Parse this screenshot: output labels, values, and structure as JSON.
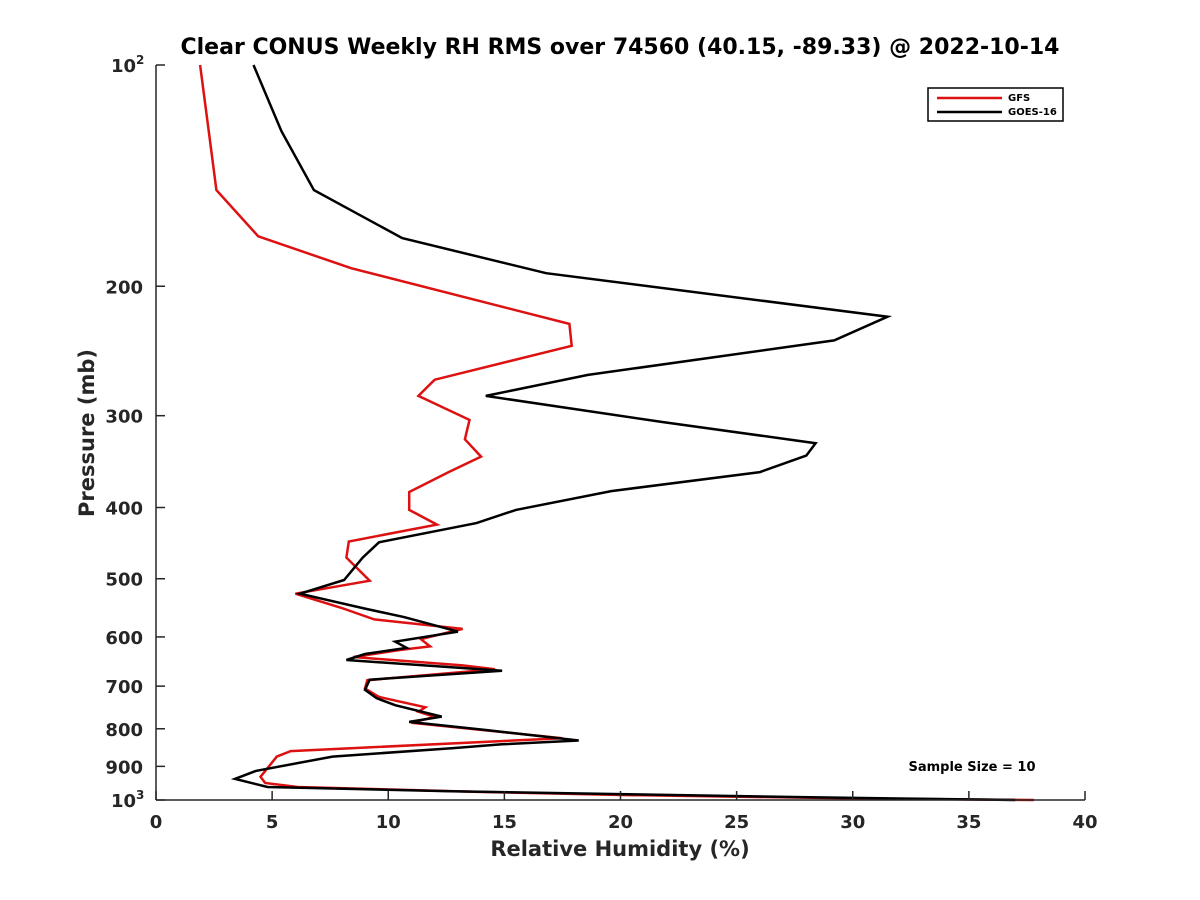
{
  "chart_data": {
    "type": "line",
    "title": "Clear CONUS Weekly RH RMS over 74560 (40.15, -89.33) @ 2022-10-14",
    "xlabel": "Relative Humidity (%)",
    "ylabel": "Pressure (mb)",
    "xlim": [
      0,
      40
    ],
    "ylim": [
      100,
      1000
    ],
    "y_scale": "log",
    "y_reversed": true,
    "x_ticks": [
      "0",
      "5",
      "10",
      "15",
      "20",
      "25",
      "30",
      "35",
      "40"
    ],
    "y_ticks": [
      {
        "value": 100,
        "label": "10",
        "sup": "2"
      },
      {
        "value": 200,
        "label": "200",
        "sup": ""
      },
      {
        "value": 300,
        "label": "300",
        "sup": ""
      },
      {
        "value": 400,
        "label": "400",
        "sup": ""
      },
      {
        "value": 500,
        "label": "500",
        "sup": ""
      },
      {
        "value": 600,
        "label": "600",
        "sup": ""
      },
      {
        "value": 700,
        "label": "700",
        "sup": ""
      },
      {
        "value": 800,
        "label": "800",
        "sup": ""
      },
      {
        "value": 900,
        "label": "900",
        "sup": ""
      },
      {
        "value": 1000,
        "label": "10",
        "sup": "3"
      }
    ],
    "grid": false,
    "legend_position": "top-right",
    "annotation": "Sample Size = 10",
    "series": [
      {
        "name": "GFS",
        "color": "#dd1111",
        "points": [
          [
            1.9,
            100
          ],
          [
            2.3,
            125
          ],
          [
            2.6,
            148
          ],
          [
            4.4,
            171
          ],
          [
            8.4,
            189
          ],
          [
            17.8,
            225
          ],
          [
            17.9,
            241
          ],
          [
            12.0,
            268
          ],
          [
            11.3,
            282
          ],
          [
            13.5,
            304
          ],
          [
            13.3,
            323
          ],
          [
            14.0,
            341
          ],
          [
            12.6,
            358
          ],
          [
            10.9,
            381
          ],
          [
            10.9,
            403
          ],
          [
            12.1,
            422
          ],
          [
            8.3,
            445
          ],
          [
            8.2,
            468
          ],
          [
            9.2,
            503
          ],
          [
            6.0,
            524
          ],
          [
            8.0,
            548
          ],
          [
            9.4,
            568
          ],
          [
            13.2,
            585
          ],
          [
            11.4,
            604
          ],
          [
            11.8,
            618
          ],
          [
            10.5,
            625
          ],
          [
            8.5,
            639
          ],
          [
            13.2,
            656
          ],
          [
            14.6,
            664
          ],
          [
            9.1,
            687
          ],
          [
            9.0,
            705
          ],
          [
            9.6,
            724
          ],
          [
            11.6,
            748
          ],
          [
            11.3,
            758
          ],
          [
            12.0,
            771
          ],
          [
            11.0,
            785
          ],
          [
            17.5,
            824
          ],
          [
            5.8,
            858
          ],
          [
            5.2,
            873
          ],
          [
            4.5,
            930
          ],
          [
            4.7,
            948
          ],
          [
            6.1,
            960
          ],
          [
            13.9,
            975
          ],
          [
            19.8,
            984
          ],
          [
            30.0,
            995
          ],
          [
            37.8,
            1000
          ]
        ]
      },
      {
        "name": "GOES-16",
        "color": "#000000",
        "points": [
          [
            4.2,
            100
          ],
          [
            5.4,
            123
          ],
          [
            6.8,
            148
          ],
          [
            10.6,
            172
          ],
          [
            16.8,
            192
          ],
          [
            31.5,
            220
          ],
          [
            29.2,
            237
          ],
          [
            18.6,
            264
          ],
          [
            14.2,
            282
          ],
          [
            21.8,
            306
          ],
          [
            28.4,
            327
          ],
          [
            28.0,
            340
          ],
          [
            26.0,
            358
          ],
          [
            19.6,
            380
          ],
          [
            15.5,
            403
          ],
          [
            13.8,
            420
          ],
          [
            9.6,
            446
          ],
          [
            8.9,
            468
          ],
          [
            8.1,
            502
          ],
          [
            6.2,
            524
          ],
          [
            9.0,
            549
          ],
          [
            10.7,
            564
          ],
          [
            13.0,
            590
          ],
          [
            10.3,
            609
          ],
          [
            10.8,
            621
          ],
          [
            9.0,
            633
          ],
          [
            8.2,
            645
          ],
          [
            14.9,
            667
          ],
          [
            9.2,
            686
          ],
          [
            9.0,
            708
          ],
          [
            9.5,
            727
          ],
          [
            10.3,
            743
          ],
          [
            12.3,
            770
          ],
          [
            10.9,
            783
          ],
          [
            14.2,
            803
          ],
          [
            18.2,
            830
          ],
          [
            14.9,
            840
          ],
          [
            12.8,
            850
          ],
          [
            7.6,
            873
          ],
          [
            4.3,
            913
          ],
          [
            3.4,
            936
          ],
          [
            4.8,
            960
          ],
          [
            12.7,
            973
          ],
          [
            20.3,
            982
          ],
          [
            28.5,
            992
          ],
          [
            37.0,
            1000
          ]
        ]
      }
    ]
  }
}
